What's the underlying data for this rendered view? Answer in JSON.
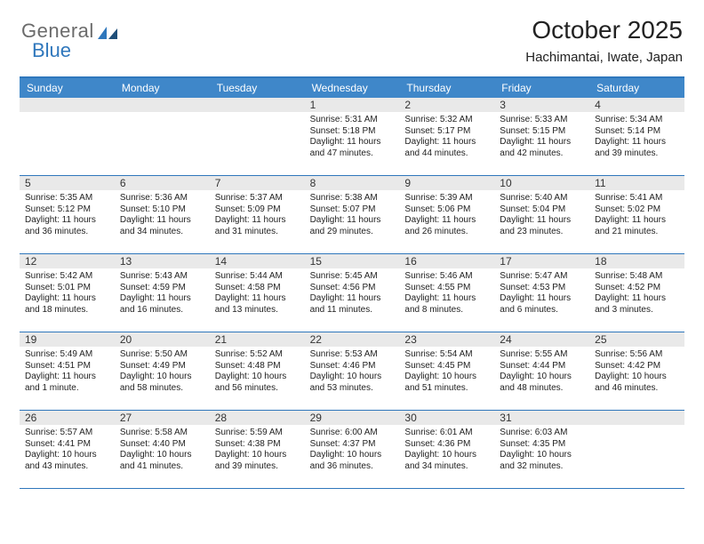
{
  "logo": {
    "word1": "General",
    "word2": "Blue"
  },
  "title": "October 2025",
  "location": "Hachimantai, Iwate, Japan",
  "header_bg": "#3f87c9",
  "border_color": "#2f77bc",
  "daynum_bg": "#e9e9e9",
  "text_color": "#222222",
  "font_sizes": {
    "title": 28,
    "subtitle": 15,
    "day_header": 12,
    "daynum": 12,
    "info": 10
  },
  "day_names": [
    "Sunday",
    "Monday",
    "Tuesday",
    "Wednesday",
    "Thursday",
    "Friday",
    "Saturday"
  ],
  "weeks": [
    [
      null,
      null,
      null,
      {
        "d": "1",
        "sr": "5:31 AM",
        "ss": "5:18 PM",
        "dl": "11 hours and 47 minutes."
      },
      {
        "d": "2",
        "sr": "5:32 AM",
        "ss": "5:17 PM",
        "dl": "11 hours and 44 minutes."
      },
      {
        "d": "3",
        "sr": "5:33 AM",
        "ss": "5:15 PM",
        "dl": "11 hours and 42 minutes."
      },
      {
        "d": "4",
        "sr": "5:34 AM",
        "ss": "5:14 PM",
        "dl": "11 hours and 39 minutes."
      }
    ],
    [
      {
        "d": "5",
        "sr": "5:35 AM",
        "ss": "5:12 PM",
        "dl": "11 hours and 36 minutes."
      },
      {
        "d": "6",
        "sr": "5:36 AM",
        "ss": "5:10 PM",
        "dl": "11 hours and 34 minutes."
      },
      {
        "d": "7",
        "sr": "5:37 AM",
        "ss": "5:09 PM",
        "dl": "11 hours and 31 minutes."
      },
      {
        "d": "8",
        "sr": "5:38 AM",
        "ss": "5:07 PM",
        "dl": "11 hours and 29 minutes."
      },
      {
        "d": "9",
        "sr": "5:39 AM",
        "ss": "5:06 PM",
        "dl": "11 hours and 26 minutes."
      },
      {
        "d": "10",
        "sr": "5:40 AM",
        "ss": "5:04 PM",
        "dl": "11 hours and 23 minutes."
      },
      {
        "d": "11",
        "sr": "5:41 AM",
        "ss": "5:02 PM",
        "dl": "11 hours and 21 minutes."
      }
    ],
    [
      {
        "d": "12",
        "sr": "5:42 AM",
        "ss": "5:01 PM",
        "dl": "11 hours and 18 minutes."
      },
      {
        "d": "13",
        "sr": "5:43 AM",
        "ss": "4:59 PM",
        "dl": "11 hours and 16 minutes."
      },
      {
        "d": "14",
        "sr": "5:44 AM",
        "ss": "4:58 PM",
        "dl": "11 hours and 13 minutes."
      },
      {
        "d": "15",
        "sr": "5:45 AM",
        "ss": "4:56 PM",
        "dl": "11 hours and 11 minutes."
      },
      {
        "d": "16",
        "sr": "5:46 AM",
        "ss": "4:55 PM",
        "dl": "11 hours and 8 minutes."
      },
      {
        "d": "17",
        "sr": "5:47 AM",
        "ss": "4:53 PM",
        "dl": "11 hours and 6 minutes."
      },
      {
        "d": "18",
        "sr": "5:48 AM",
        "ss": "4:52 PM",
        "dl": "11 hours and 3 minutes."
      }
    ],
    [
      {
        "d": "19",
        "sr": "5:49 AM",
        "ss": "4:51 PM",
        "dl": "11 hours and 1 minute."
      },
      {
        "d": "20",
        "sr": "5:50 AM",
        "ss": "4:49 PM",
        "dl": "10 hours and 58 minutes."
      },
      {
        "d": "21",
        "sr": "5:52 AM",
        "ss": "4:48 PM",
        "dl": "10 hours and 56 minutes."
      },
      {
        "d": "22",
        "sr": "5:53 AM",
        "ss": "4:46 PM",
        "dl": "10 hours and 53 minutes."
      },
      {
        "d": "23",
        "sr": "5:54 AM",
        "ss": "4:45 PM",
        "dl": "10 hours and 51 minutes."
      },
      {
        "d": "24",
        "sr": "5:55 AM",
        "ss": "4:44 PM",
        "dl": "10 hours and 48 minutes."
      },
      {
        "d": "25",
        "sr": "5:56 AM",
        "ss": "4:42 PM",
        "dl": "10 hours and 46 minutes."
      }
    ],
    [
      {
        "d": "26",
        "sr": "5:57 AM",
        "ss": "4:41 PM",
        "dl": "10 hours and 43 minutes."
      },
      {
        "d": "27",
        "sr": "5:58 AM",
        "ss": "4:40 PM",
        "dl": "10 hours and 41 minutes."
      },
      {
        "d": "28",
        "sr": "5:59 AM",
        "ss": "4:38 PM",
        "dl": "10 hours and 39 minutes."
      },
      {
        "d": "29",
        "sr": "6:00 AM",
        "ss": "4:37 PM",
        "dl": "10 hours and 36 minutes."
      },
      {
        "d": "30",
        "sr": "6:01 AM",
        "ss": "4:36 PM",
        "dl": "10 hours and 34 minutes."
      },
      {
        "d": "31",
        "sr": "6:03 AM",
        "ss": "4:35 PM",
        "dl": "10 hours and 32 minutes."
      },
      null
    ]
  ],
  "labels": {
    "sunrise": "Sunrise:",
    "sunset": "Sunset:",
    "daylight": "Daylight:"
  }
}
